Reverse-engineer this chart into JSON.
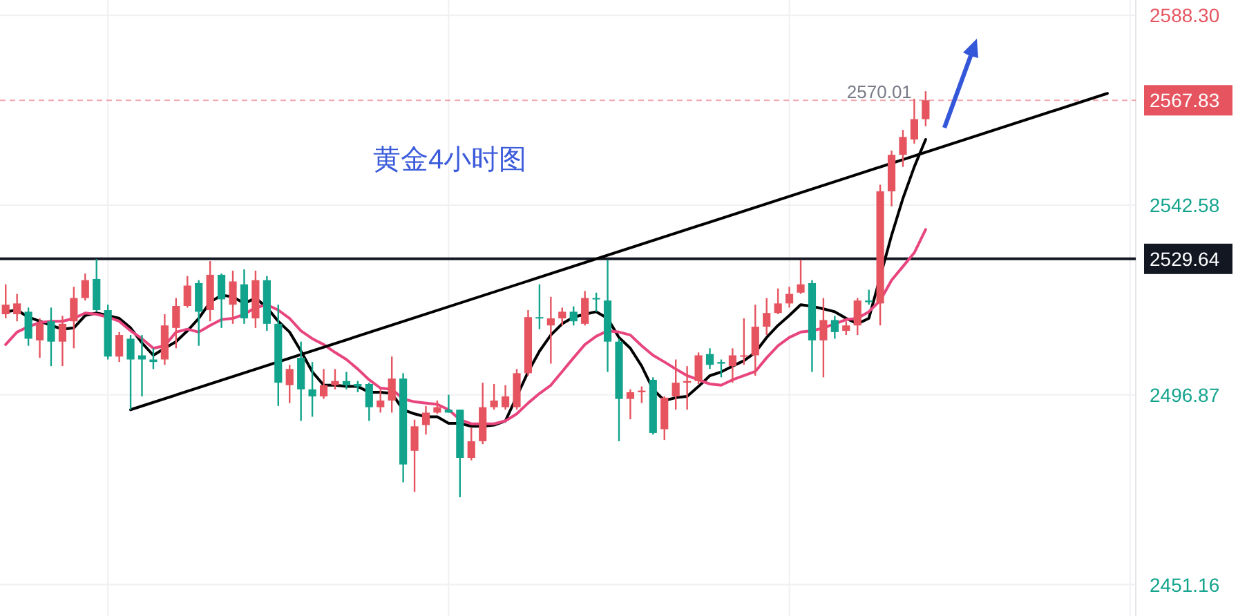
{
  "chart_data": {
    "type": "candlestick",
    "categories": [
      null,
      null,
      null,
      null,
      null,
      null,
      null,
      null,
      null,
      null,
      null,
      null,
      null,
      null,
      null,
      null,
      null,
      null,
      null,
      null,
      null,
      null,
      null,
      null,
      null,
      null,
      null,
      null,
      null,
      null,
      null,
      null,
      null,
      null,
      null,
      null,
      null,
      null,
      null,
      null,
      null,
      null,
      null,
      null,
      null,
      null,
      null,
      null,
      null,
      null,
      null,
      null,
      null,
      null,
      null,
      null,
      null,
      null,
      null,
      null,
      null,
      null,
      null,
      null,
      null,
      null,
      null,
      null,
      null,
      null,
      null,
      null,
      null,
      null,
      null,
      null,
      null,
      null,
      null,
      null,
      null,
      null,
      null,
      null,
      null,
      null,
      null,
      null,
      null,
      null,
      null,
      null,
      null,
      null,
      null,
      null,
      null,
      null,
      null,
      null
    ],
    "ohlc": [
      [
        2516.3,
        2523.5,
        2515.3,
        2518.6
      ],
      [
        2516.3,
        2521.2,
        2514.6,
        2518.9
      ],
      [
        2516.9,
        2517.9,
        2508.7,
        2510.4
      ],
      [
        2510.0,
        2515.3,
        2505.8,
        2514.0
      ],
      [
        2514.6,
        2517.9,
        2503.8,
        2509.7
      ],
      [
        2509.7,
        2515.9,
        2503.8,
        2514.0
      ],
      [
        2514.6,
        2522.9,
        2508.1,
        2520.2
      ],
      [
        2520.2,
        2526.1,
        2519.6,
        2524.5
      ],
      [
        2524.8,
        2529.6,
        2516.9,
        2517.3
      ],
      [
        2517.3,
        2518.6,
        2505.4,
        2506.1
      ],
      [
        2506.1,
        2512.0,
        2504.8,
        2511.3
      ],
      [
        2510.4,
        2511.3,
        2493.3,
        2505.4
      ],
      [
        2506.4,
        2511.3,
        2496.5,
        2505.4
      ],
      [
        2505.4,
        2508.1,
        2503.1,
        2504.8
      ],
      [
        2505.4,
        2516.3,
        2504.1,
        2513.6
      ],
      [
        2513.0,
        2520.2,
        2508.1,
        2518.3
      ],
      [
        2518.3,
        2525.5,
        2517.9,
        2523.2
      ],
      [
        2523.8,
        2524.5,
        2508.7,
        2516.9
      ],
      [
        2517.3,
        2529.1,
        2514.6,
        2525.8
      ],
      [
        2525.8,
        2526.1,
        2513.0,
        2519.9
      ],
      [
        2518.6,
        2526.8,
        2514.0,
        2524.2
      ],
      [
        2523.5,
        2527.1,
        2514.0,
        2515.3
      ],
      [
        2515.3,
        2526.8,
        2513.0,
        2524.5
      ],
      [
        2524.5,
        2525.5,
        2512.3,
        2514.0
      ],
      [
        2514.0,
        2518.6,
        2494.2,
        2499.8
      ],
      [
        2499.2,
        2504.1,
        2494.9,
        2503.1
      ],
      [
        2505.8,
        2509.7,
        2490.6,
        2498.2
      ],
      [
        2498.2,
        2504.8,
        2491.6,
        2496.5
      ],
      [
        2496.5,
        2503.1,
        2495.9,
        2499.2
      ],
      [
        2499.2,
        2503.1,
        2498.2,
        2500.2
      ],
      [
        2500.2,
        2502.4,
        2498.2,
        2499.2
      ],
      [
        2499.5,
        2500.2,
        2497.5,
        2498.9
      ],
      [
        2499.5,
        2499.8,
        2490.6,
        2493.9
      ],
      [
        2493.9,
        2498.2,
        2492.6,
        2495.5
      ],
      [
        2495.5,
        2506.1,
        2492.6,
        2500.8
      ],
      [
        2500.8,
        2502.1,
        2475.8,
        2480.1
      ],
      [
        2483.4,
        2490.9,
        2473.5,
        2489.3
      ],
      [
        2489.6,
        2494.2,
        2487.3,
        2492.6
      ],
      [
        2492.6,
        2495.5,
        2492.3,
        2493.9
      ],
      [
        2493.3,
        2496.9,
        2492.6,
        2492.6
      ],
      [
        2493.3,
        2493.3,
        2472.2,
        2481.7
      ],
      [
        2481.7,
        2488.9,
        2481.1,
        2485.7
      ],
      [
        2485.7,
        2499.8,
        2485.0,
        2493.9
      ],
      [
        2493.9,
        2499.5,
        2493.3,
        2495.5
      ],
      [
        2493.9,
        2499.2,
        2493.3,
        2496.5
      ],
      [
        2493.9,
        2503.1,
        2493.3,
        2502.1
      ],
      [
        2502.1,
        2517.3,
        2501.5,
        2515.6
      ],
      [
        2515.6,
        2523.5,
        2512.7,
        2515.3
      ],
      [
        2513.6,
        2520.5,
        2504.4,
        2515.3
      ],
      [
        2515.3,
        2517.9,
        2513.6,
        2516.9
      ],
      [
        2516.9,
        2518.2,
        2513.6,
        2514.6
      ],
      [
        2514.0,
        2521.9,
        2513.6,
        2520.2
      ],
      [
        2520.2,
        2521.5,
        2516.9,
        2519.9
      ],
      [
        2519.6,
        2529.4,
        2502.4,
        2509.7
      ],
      [
        2509.7,
        2510.4,
        2485.7,
        2495.9
      ],
      [
        2495.9,
        2498.2,
        2491.0,
        2497.5
      ],
      [
        2497.5,
        2498.9,
        2494.9,
        2497.9
      ],
      [
        2500.5,
        2501.1,
        2487.3,
        2487.7
      ],
      [
        2488.6,
        2496.5,
        2486.0,
        2496.2
      ],
      [
        2496.5,
        2505.4,
        2493.3,
        2499.8
      ],
      [
        2499.8,
        2503.8,
        2493.3,
        2500.2
      ],
      [
        2500.2,
        2507.1,
        2499.5,
        2506.4
      ],
      [
        2506.7,
        2508.1,
        2503.1,
        2504.1
      ],
      [
        2504.8,
        2505.4,
        2501.1,
        2504.4
      ],
      [
        2503.8,
        2508.1,
        2499.8,
        2506.4
      ],
      [
        2506.1,
        2515.3,
        2504.1,
        2506.4
      ],
      [
        2506.4,
        2518.6,
        2501.5,
        2513.3
      ],
      [
        2513.3,
        2520.2,
        2511.3,
        2516.6
      ],
      [
        2516.6,
        2522.5,
        2516.3,
        2518.9
      ],
      [
        2518.9,
        2522.9,
        2517.9,
        2521.2
      ],
      [
        2521.5,
        2529.4,
        2521.2,
        2523.5
      ],
      [
        2523.8,
        2524.5,
        2502.4,
        2510.0
      ],
      [
        2510.0,
        2520.2,
        2501.1,
        2514.9
      ],
      [
        2514.9,
        2515.9,
        2510.4,
        2512.0
      ],
      [
        2512.3,
        2514.6,
        2511.3,
        2513.6
      ],
      [
        2513.6,
        2520.2,
        2511.3,
        2519.6
      ],
      [
        2519.6,
        2522.2,
        2518.6,
        2519.2
      ],
      [
        2518.9,
        2547.5,
        2513.6,
        2545.9
      ],
      [
        2545.9,
        2555.7,
        2542.3,
        2554.7
      ],
      [
        2554.7,
        2560.7,
        2551.8,
        2559.0
      ],
      [
        2558.4,
        2568.2,
        2557.4,
        2563.3
      ],
      [
        2563.3,
        2570.01,
        2561.6,
        2567.83
      ],
      null,
      null,
      null,
      null,
      null,
      null,
      null,
      null,
      null,
      null,
      null,
      null,
      null,
      null,
      null,
      null,
      null,
      null
    ],
    "series": [
      {
        "type": "line",
        "color": "#000000",
        "values": [
          2516.9,
          2517.3,
          2515.6,
          2514.6,
          2513.6,
          2512.7,
          2513.0,
          2516.0,
          2516.6,
          2516.0,
          2515.3,
          2513.0,
          2509.4,
          2506.4,
          2508.1,
          2509.7,
          2512.3,
          2515.3,
          2519.2,
          2520.9,
          2520.5,
          2518.9,
          2520.2,
          2517.9,
          2514.6,
          2512.0,
          2507.4,
          2502.4,
          2499.2,
          2499.2,
          2498.9,
          2498.9,
          2497.5,
          2497.5,
          2497.2,
          2493.3,
          2492.3,
          2491.6,
          2491.6,
          2490.0,
          2490.0,
          2489.3,
          2489.3,
          2489.6,
          2490.6,
          null,
          2502.4,
          2507.4,
          2511.3,
          2514.0,
          2515.6,
          2516.3,
          2516.9,
          2515.3,
          2510.7,
          2508.1,
          2503.8,
          2498.2,
          2495.5,
          2496.2,
          2496.5,
          2498.9,
          2501.5,
          2502.4,
          2503.8,
          2505.1,
          2507.1,
          2510.7,
          2513.6,
          2516.0,
          2518.6,
          2518.2,
          2517.6,
          2516.9,
          2515.3,
          2514.0,
          2515.3,
          null,
          2535.3,
          2544.2,
          2551.8,
          2558.4,
          null,
          null,
          null,
          null,
          null,
          null,
          null,
          null,
          null,
          null,
          null,
          null,
          null,
          null,
          null,
          null,
          null,
          null
        ]
      },
      {
        "type": "line",
        "color": "#e8457f",
        "values": [
          2509.0,
          2512.0,
          2513.3,
          2514.3,
          2514.6,
          2514.6,
          2515.3,
          2516.6,
          2516.3,
          2515.6,
          2514.6,
          2512.3,
          2510.4,
          2508.1,
          2508.7,
          2512.0,
          2512.7,
          2512.0,
          2513.6,
          2515.0,
          2515.3,
          2516.3,
          2517.9,
          2518.6,
          2517.3,
          2515.3,
          2512.3,
          2510.4,
          2509.0,
          2507.1,
          2505.4,
          2503.1,
          2500.5,
          2498.5,
          2498.2,
          2495.9,
          2495.2,
          2494.9,
          2494.6,
          2493.3,
          2490.9,
          2489.9,
          2489.9,
          2489.9,
          2490.6,
          2492.3,
          2494.9,
          2497.2,
          2499.2,
          2502.5,
          2505.8,
          2509.0,
          2511.0,
          2512.3,
          2512.0,
          2511.3,
          2508.7,
          2506.4,
          2504.8,
          2503.1,
          2501.5,
          2500.5,
          2499.5,
          2499.2,
          2500.5,
          2501.5,
          2502.5,
          2505.8,
          2508.7,
          2510.7,
          2512.0,
          2512.3,
          2513.0,
          2514.0,
          2515.0,
          2515.3,
          2516.9,
          2519.6,
          2524.5,
          2527.8,
          2531.1,
          2536.7,
          null,
          null,
          null,
          null,
          null,
          null,
          null,
          null,
          null,
          null,
          null,
          null,
          null,
          null,
          null,
          null,
          null,
          null
        ]
      },
      {
        "type": "line",
        "color": "#000000",
        "values": [
          null,
          null,
          null,
          null,
          null,
          null,
          null,
          null,
          null,
          null,
          null,
          2493.3,
          null,
          null,
          null,
          null,
          null,
          null,
          null,
          null,
          null,
          null,
          null,
          null,
          null,
          null,
          null,
          null,
          null,
          null,
          null,
          null,
          null,
          null,
          null,
          null,
          null,
          null,
          null,
          null,
          null,
          null,
          null,
          null,
          null,
          null,
          null,
          null,
          null,
          null,
          null,
          null,
          null,
          null,
          null,
          null,
          null,
          null,
          null,
          null,
          null,
          null,
          null,
          null,
          null,
          null,
          null,
          null,
          null,
          null,
          null,
          null,
          null,
          null,
          null,
          null,
          null,
          null,
          null,
          null,
          null,
          null,
          null,
          null,
          null,
          null,
          null,
          null,
          null,
          null,
          null,
          null,
          null,
          null,
          null,
          null,
          null,
          2569.5,
          null,
          null
        ]
      }
    ],
    "ylim": [
      2443.6,
      2592.0
    ],
    "yticks": [
      {
        "value": 2588.3,
        "label": "2588.30"
      },
      {
        "value": 2542.58,
        "label": "2542.58"
      },
      {
        "value": 2496.87,
        "label": "2496.87"
      },
      {
        "value": 2451.16,
        "label": "2451.16"
      }
    ],
    "tick_labels": "y",
    "grid": true,
    "ref_lines": [
      {
        "axis": "y",
        "value": 2567.83,
        "label": "2567.83",
        "color": "#e5545f",
        "line_style": "dashed"
      },
      {
        "axis": "y",
        "value": 2529.64,
        "label": "2529.64",
        "color": "#131722",
        "line_style": "solid"
      }
    ],
    "annotations": [
      "黄金4小时图",
      "2570.01"
    ]
  }
}
